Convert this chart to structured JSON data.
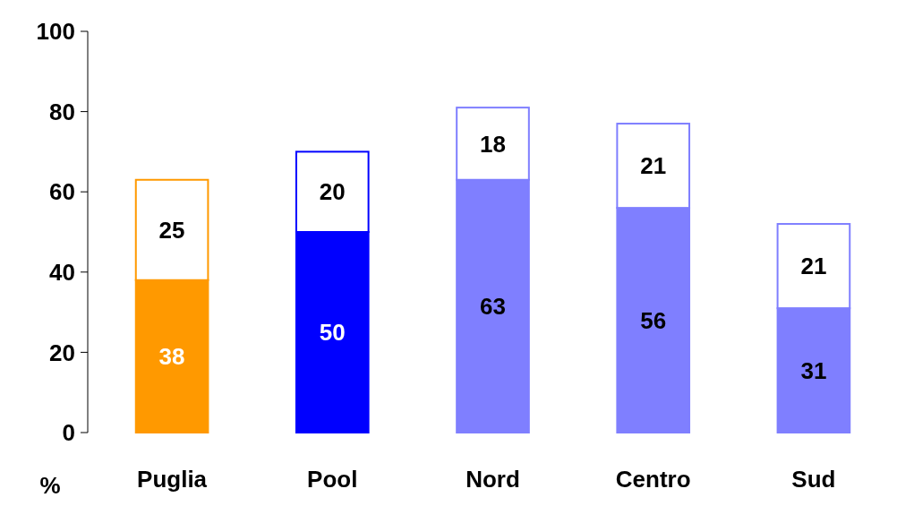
{
  "chart_data": {
    "type": "bar",
    "stacked": true,
    "ylabel": "%",
    "categories": [
      "Puglia",
      "Pool",
      "Nord",
      "Centro",
      "Sud"
    ],
    "series": [
      {
        "colors": [
          "#ff9900",
          "#0000ff",
          "#7f7fff",
          "#7f7fff",
          "#7f7fff"
        ],
        "values": [
          38,
          50,
          63,
          56,
          31
        ]
      },
      {
        "color": "#ffffff",
        "values": [
          25,
          20,
          18,
          21,
          21
        ]
      }
    ],
    "ylim": [
      0,
      100
    ],
    "yticks": [
      0,
      20,
      40,
      60,
      80,
      100
    ],
    "data_labels": true
  }
}
